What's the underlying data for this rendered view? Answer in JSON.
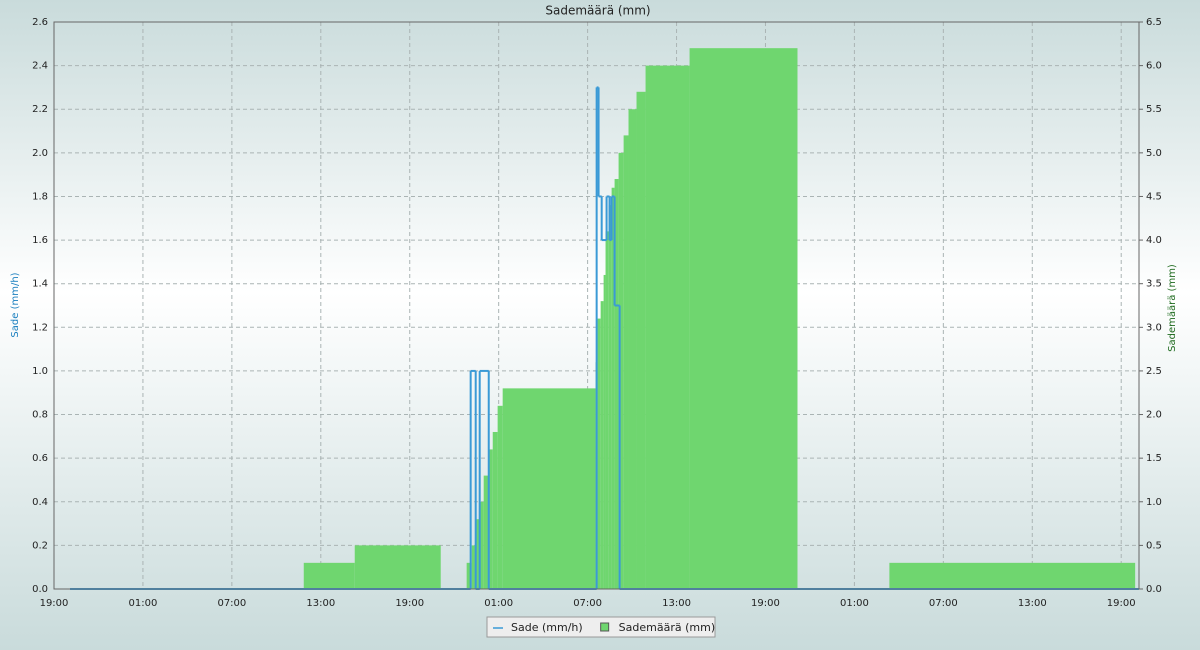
{
  "chart_data": {
    "type": "step",
    "title": "Sademäärä (mm)",
    "y_label": "Sade (mm/h)",
    "y2_label": "Sademäärä (mm)",
    "xlim": [
      0,
      73.2
    ],
    "xticks": [
      {
        "value": 0,
        "label": "19:00"
      },
      {
        "value": 6,
        "label": "01:00"
      },
      {
        "value": 12,
        "label": "07:00"
      },
      {
        "value": 18,
        "label": "13:00"
      },
      {
        "value": 24,
        "label": "19:00"
      },
      {
        "value": 30,
        "label": "01:00"
      },
      {
        "value": 36,
        "label": "07:00"
      },
      {
        "value": 42,
        "label": "13:00"
      },
      {
        "value": 48,
        "label": "19:00"
      },
      {
        "value": 54,
        "label": "01:00"
      },
      {
        "value": 60,
        "label": "07:00"
      },
      {
        "value": 66,
        "label": "13:00"
      },
      {
        "value": 72,
        "label": "19:00"
      }
    ],
    "ylim": [
      0,
      2.6
    ],
    "yticks": [
      {
        "value": 0,
        "label": "0.0"
      },
      0.2,
      0.4,
      0.6,
      0.8,
      {
        "value": 1,
        "label": "1.0"
      },
      1.2,
      1.4,
      1.6,
      1.8,
      {
        "value": 2,
        "label": "2.0"
      },
      2.2,
      2.4,
      2.6
    ],
    "y2lim": [
      0,
      6.5
    ],
    "y2ticks": [
      {
        "value": 0,
        "label": "0.0"
      },
      0.5,
      {
        "value": 1,
        "label": "1.0"
      },
      1.5,
      {
        "value": 2,
        "label": "2.0"
      },
      2.5,
      {
        "value": 3,
        "label": "3.0"
      },
      3.5,
      {
        "value": 4,
        "label": "4.0"
      },
      4.5,
      {
        "value": 5,
        "label": "5.0"
      },
      5.5,
      {
        "value": 6,
        "label": "6.0"
      },
      6.5
    ],
    "grid": true,
    "series": [
      {
        "name": "Sade (mm/h)",
        "color": "#3a9ad6",
        "style": "line",
        "x": [
          1.08,
          28.11,
          28.45,
          28.72,
          29.33,
          36.61,
          36.74,
          36.95,
          37.28,
          37.48,
          37.62,
          37.82,
          38.16,
          73.16
        ],
        "values": [
          0,
          1.0,
          0,
          1.0,
          0,
          2.3,
          1.8,
          1.6,
          1.8,
          1.6,
          1.8,
          1.3,
          0,
          0
        ]
      },
      {
        "name": "Sademäärä (mm)",
        "color": "#6fd66f",
        "style": "area",
        "axis": "y2",
        "x": [
          0,
          16.85,
          20.29,
          26.09,
          27.84,
          28.18,
          28.45,
          28.72,
          28.99,
          29.33,
          29.6,
          29.93,
          30.27,
          36.54,
          36.67,
          36.88,
          37.08,
          37.21,
          37.42,
          37.62,
          37.82,
          38.09,
          38.43,
          38.76,
          39.3,
          39.91,
          42.88,
          50.16,
          56.36,
          72.94
        ],
        "values": [
          0,
          0.3,
          0.5,
          0,
          0.3,
          0.5,
          0.8,
          1.0,
          1.3,
          1.6,
          1.8,
          2.1,
          2.3,
          2.6,
          3.1,
          3.3,
          3.6,
          4.1,
          4.4,
          4.6,
          4.7,
          5.0,
          5.2,
          5.5,
          5.7,
          6.0,
          6.2,
          0,
          0.3,
          0
        ]
      }
    ]
  }
}
